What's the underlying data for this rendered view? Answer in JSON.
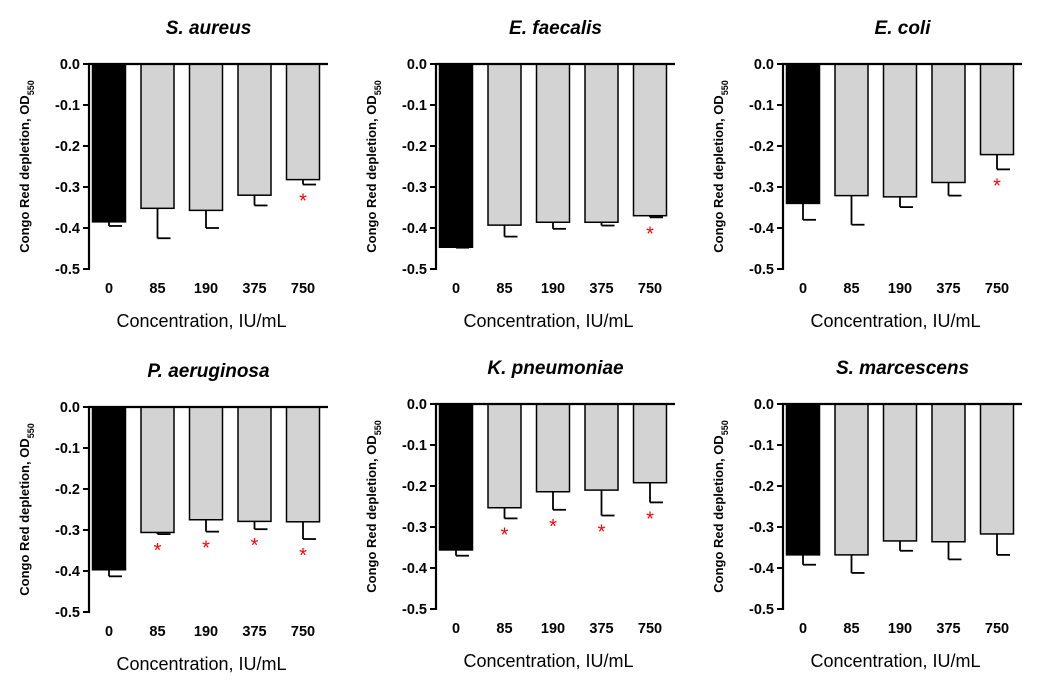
{
  "chart_data": [
    {
      "type": "bar",
      "title": "S. aureus",
      "xlabel": "Concentration, IU/mL",
      "ylabel": "Congo Red depletion, OD",
      "ylabel_sub": "550",
      "ylim": [
        -0.5,
        0.0
      ],
      "yticks": [
        "0.0",
        "-0.1",
        "-0.2",
        "-0.3",
        "-0.4",
        "-0.5"
      ],
      "categories": [
        "0",
        "85",
        "190",
        "375",
        "750"
      ],
      "values": [
        -0.385,
        -0.352,
        -0.357,
        -0.32,
        -0.282
      ],
      "error": [
        0.01,
        0.073,
        0.043,
        0.025,
        0.012
      ],
      "significance": [
        "",
        "",
        "",
        "",
        "*"
      ],
      "bar_colors": [
        "#000000",
        "#d3d3d3",
        "#d3d3d3",
        "#d3d3d3",
        "#d3d3d3"
      ]
    },
    {
      "type": "bar",
      "title": "E. faecalis",
      "xlabel": "Concentration, IU/mL",
      "ylabel": "Congo Red depletion, OD",
      "ylabel_sub": "550",
      "ylim": [
        -0.5,
        0.0
      ],
      "yticks": [
        "0.0",
        "-0.1",
        "-0.2",
        "-0.3",
        "-0.4",
        "-0.5"
      ],
      "categories": [
        "0",
        "85",
        "190",
        "375",
        "750"
      ],
      "values": [
        -0.447,
        -0.393,
        -0.386,
        -0.386,
        -0.37
      ],
      "error": [
        0.001,
        0.028,
        0.016,
        0.008,
        0.004
      ],
      "significance": [
        "",
        "",
        "",
        "",
        "*"
      ],
      "bar_colors": [
        "#000000",
        "#d3d3d3",
        "#d3d3d3",
        "#d3d3d3",
        "#d3d3d3"
      ]
    },
    {
      "type": "bar",
      "title": "E. coli",
      "xlabel": "Concentration, IU/mL",
      "ylabel": "Congo Red depletion, OD",
      "ylabel_sub": "550",
      "ylim": [
        -0.5,
        0.0
      ],
      "yticks": [
        "0.0",
        "-0.1",
        "-0.2",
        "-0.3",
        "-0.4",
        "-0.5"
      ],
      "categories": [
        "0",
        "85",
        "190",
        "375",
        "750"
      ],
      "values": [
        -0.34,
        -0.321,
        -0.324,
        -0.289,
        -0.221
      ],
      "error": [
        0.04,
        0.071,
        0.025,
        0.032,
        0.036
      ],
      "significance": [
        "",
        "",
        "",
        "",
        "*"
      ],
      "bar_colors": [
        "#000000",
        "#d3d3d3",
        "#d3d3d3",
        "#d3d3d3",
        "#d3d3d3"
      ]
    },
    {
      "type": "bar",
      "title": "P. aeruginosa",
      "xlabel": "Concentration, IU/mL",
      "ylabel": "Congo Red depletion, OD",
      "ylabel_sub": "550",
      "ylim": [
        -0.5,
        0.0
      ],
      "yticks": [
        "0.0",
        "-0.1",
        "-0.2",
        "-0.3",
        "-0.4",
        "-0.5"
      ],
      "categories": [
        "0",
        "85",
        "190",
        "375",
        "750"
      ],
      "values": [
        -0.397,
        -0.306,
        -0.275,
        -0.279,
        -0.28
      ],
      "error": [
        0.016,
        0.004,
        0.029,
        0.019,
        0.042
      ],
      "significance": [
        "",
        "*",
        "*",
        "*",
        "*"
      ],
      "bar_colors": [
        "#000000",
        "#d3d3d3",
        "#d3d3d3",
        "#d3d3d3",
        "#d3d3d3"
      ]
    },
    {
      "type": "bar",
      "title": "K. pneumoniae",
      "xlabel": "Concentration, IU/mL",
      "ylabel": "Congo Red depletion, OD",
      "ylabel_sub": "550",
      "ylim": [
        -0.5,
        0.0
      ],
      "yticks": [
        "0.0",
        "-0.1",
        "-0.2",
        "-0.3",
        "-0.4",
        "-0.5"
      ],
      "categories": [
        "0",
        "85",
        "190",
        "375",
        "750"
      ],
      "values": [
        -0.356,
        -0.253,
        -0.214,
        -0.21,
        -0.192
      ],
      "error": [
        0.014,
        0.026,
        0.044,
        0.062,
        0.048
      ],
      "significance": [
        "",
        "*",
        "*",
        "*",
        "*"
      ],
      "bar_colors": [
        "#000000",
        "#d3d3d3",
        "#d3d3d3",
        "#d3d3d3",
        "#d3d3d3"
      ]
    },
    {
      "type": "bar",
      "title": "S. marcescens",
      "xlabel": "Concentration, IU/mL",
      "ylabel": "Congo Red depletion, OD",
      "ylabel_sub": "550",
      "ylim": [
        -0.5,
        0.0
      ],
      "yticks": [
        "0.0",
        "-0.1",
        "-0.2",
        "-0.3",
        "-0.4",
        "-0.5"
      ],
      "categories": [
        "0",
        "85",
        "190",
        "375",
        "750"
      ],
      "values": [
        -0.368,
        -0.368,
        -0.334,
        -0.336,
        -0.317
      ],
      "error": [
        0.024,
        0.044,
        0.024,
        0.043,
        0.051
      ],
      "significance": [
        "",
        "",
        "",
        "",
        ""
      ],
      "bar_colors": [
        "#000000",
        "#d3d3d3",
        "#d3d3d3",
        "#d3d3d3",
        "#d3d3d3"
      ]
    }
  ]
}
